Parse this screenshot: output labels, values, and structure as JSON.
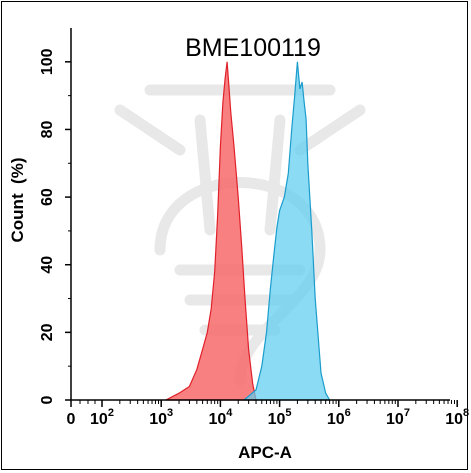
{
  "chart_data": {
    "type": "area",
    "title": "BME100119",
    "xlabel": "APC-A",
    "ylabel": "Count  (%)",
    "x_scale": "log",
    "x_ticks": [
      {
        "base": "0",
        "exp": ""
      },
      {
        "base": "10",
        "exp": "2"
      },
      {
        "base": "10",
        "exp": "3"
      },
      {
        "base": "10",
        "exp": "4"
      },
      {
        "base": "10",
        "exp": "5"
      },
      {
        "base": "10",
        "exp": "6"
      },
      {
        "base": "10",
        "exp": "7"
      },
      {
        "base": "10",
        "exp": "8"
      }
    ],
    "y_ticks": [
      "0",
      "20",
      "40",
      "60",
      "80",
      "100"
    ],
    "ylim": [
      0,
      110
    ],
    "grid": false,
    "series": [
      {
        "color": "#f86a6a",
        "x": [
          1200,
          2000,
          3000,
          4000,
          5000,
          6000,
          7000,
          8000,
          9000,
          10000,
          11000,
          12000,
          13000,
          14000,
          15000,
          17000,
          20000,
          23000,
          26000,
          30000,
          35000,
          40000
        ],
        "y": [
          0,
          2,
          4,
          9,
          15,
          20,
          27,
          38,
          55,
          75,
          88,
          95,
          100,
          92,
          85,
          75,
          60,
          45,
          30,
          15,
          5,
          0
        ]
      },
      {
        "color": "#5ecdf0",
        "x": [
          25000,
          40000,
          50000,
          60000,
          70000,
          80000,
          90000,
          100000,
          120000,
          140000,
          160000,
          180000,
          200000,
          220000,
          240000,
          260000,
          280000,
          300000,
          350000,
          400000,
          500000,
          600000,
          700000
        ],
        "y": [
          0,
          3,
          10,
          20,
          33,
          43,
          51,
          56,
          60,
          67,
          80,
          90,
          100,
          92,
          94,
          88,
          83,
          70,
          50,
          30,
          8,
          2,
          0
        ]
      }
    ]
  }
}
